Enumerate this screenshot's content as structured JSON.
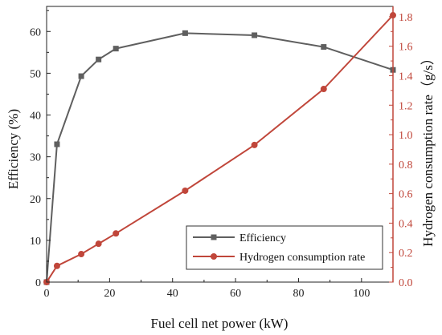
{
  "chart_data": {
    "type": "line",
    "xlabel": "Fuel cell net power (kW)",
    "ylabel_left": "Efficiency (%)",
    "ylabel_right": "Hydrogen consumption rate（g/s）",
    "xlim": [
      0,
      110
    ],
    "xticks": [
      0,
      20,
      40,
      60,
      80,
      100
    ],
    "ylim_left": [
      0,
      66
    ],
    "yticks_left": [
      0,
      10,
      20,
      30,
      40,
      50,
      60
    ],
    "ylim_right": [
      0,
      1.87
    ],
    "yticks_right": [
      0.0,
      0.2,
      0.4,
      0.6,
      0.8,
      1.0,
      1.2,
      1.4,
      1.6,
      1.8
    ],
    "legend_position": "bottom-right",
    "series": [
      {
        "name": "Efficiency",
        "axis": "left",
        "color": "#5f5f5f",
        "marker": "square",
        "x": [
          0,
          3.3,
          11,
          16.5,
          22,
          44,
          66,
          88,
          110
        ],
        "y": [
          0,
          33,
          49.3,
          53.3,
          55.9,
          59.6,
          59.1,
          56.3,
          50.8
        ]
      },
      {
        "name": "Hydrogen consumption rate",
        "axis": "right",
        "color": "#c0463a",
        "marker": "circle",
        "x": [
          0,
          3.3,
          11,
          16.5,
          22,
          44,
          66,
          88,
          110
        ],
        "y": [
          0,
          0.11,
          0.19,
          0.26,
          0.33,
          0.62,
          0.93,
          1.31,
          1.81
        ]
      }
    ]
  }
}
